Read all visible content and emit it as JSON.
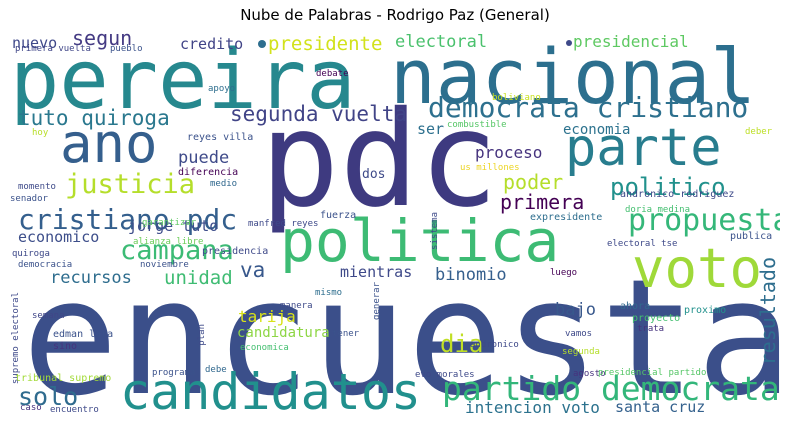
{
  "title": "Nube de Palabras - Rodrigo Paz (General)",
  "words": [
    {
      "text": "encuesta",
      "color": "#3b4f8a"
    },
    {
      "text": "pdc",
      "color": "#3e3a80"
    },
    {
      "text": "nacional",
      "color": "#2c6f8e"
    },
    {
      "text": "pereira",
      "color": "#26888e"
    },
    {
      "text": "politica",
      "color": "#3dbb74"
    },
    {
      "text": "voto",
      "color": "#9fd939"
    },
    {
      "text": "candidatos",
      "color": "#21908d"
    },
    {
      "text": "parte",
      "color": "#287d8e"
    },
    {
      "text": "ano",
      "color": "#355f8d"
    },
    {
      "text": "partido democrata",
      "color": "#33b67a"
    },
    {
      "text": "democrata cristiano",
      "color": "#2d708e"
    },
    {
      "text": "cristiano pdc",
      "color": "#345f8d"
    },
    {
      "text": "propuesta",
      "color": "#35b779"
    },
    {
      "text": "justicia",
      "color": "#b5de2b"
    },
    {
      "text": "campana",
      "color": "#3cbb75"
    },
    {
      "text": "tuto quiroga",
      "color": "#2a788e"
    },
    {
      "text": "segunda vuelta",
      "color": "#414487"
    },
    {
      "text": "politico",
      "color": "#21918c"
    },
    {
      "text": "solo",
      "color": "#2f6b8e"
    },
    {
      "text": "presidente",
      "color": "#d2e21b"
    },
    {
      "text": "segun",
      "color": "#443a83"
    },
    {
      "text": "nuevo",
      "color": "#3f4889"
    },
    {
      "text": "credito",
      "color": "#414487"
    },
    {
      "text": "electoral",
      "color": "#4ac16d"
    },
    {
      "text": "presidencial",
      "color": "#5ec962"
    },
    {
      "text": "resultado",
      "color": "#2e6e8e"
    },
    {
      "text": "va",
      "color": "#38588c"
    },
    {
      "text": "dia",
      "color": "#c0df25"
    },
    {
      "text": "tarija",
      "color": "#d8e219"
    },
    {
      "text": "binomio",
      "color": "#355f8d"
    },
    {
      "text": "recursos",
      "color": "#2e6d8e"
    },
    {
      "text": "unidad",
      "color": "#3fbc73"
    },
    {
      "text": "economico",
      "color": "#3d4e8a"
    },
    {
      "text": "jorge tuto",
      "color": "#3d4d8a"
    },
    {
      "text": "primera",
      "color": "#440154"
    },
    {
      "text": "poder",
      "color": "#b5de2b"
    },
    {
      "text": "proceso",
      "color": "#46337e"
    },
    {
      "text": "puede",
      "color": "#3e4a89"
    },
    {
      "text": "mientras",
      "color": "#3e4989"
    },
    {
      "text": "intencion voto",
      "color": "#2c728e"
    },
    {
      "text": "santa cruz",
      "color": "#34618d"
    },
    {
      "text": "bajo",
      "color": "#38588c"
    },
    {
      "text": "economia",
      "color": "#2c728e"
    },
    {
      "text": "ser",
      "color": "#2d708e"
    },
    {
      "text": "dos",
      "color": "#3e4a89"
    },
    {
      "text": "candidatura",
      "color": "#8ed645"
    },
    {
      "text": "primera vuelta",
      "color": "#404688"
    },
    {
      "text": "pueblo",
      "color": "#3b528b"
    },
    {
      "text": "boliviano",
      "color": "#c8e020"
    },
    {
      "text": "combustible",
      "color": "#56c667"
    },
    {
      "text": "debate",
      "color": "#440154"
    },
    {
      "text": "apoyo",
      "color": "#2e6e8e"
    },
    {
      "text": "reyes villa",
      "color": "#3b528b"
    },
    {
      "text": "diferencia",
      "color": "#440154"
    },
    {
      "text": "medio",
      "color": "#31688e"
    },
    {
      "text": "hoy",
      "color": "#b8de29"
    },
    {
      "text": "momento",
      "color": "#3e4a89"
    },
    {
      "text": "senador",
      "color": "#3b528b"
    },
    {
      "text": "us millones",
      "color": "#ecd525"
    },
    {
      "text": "deber",
      "color": "#bddf26"
    },
    {
      "text": "andronico rodriguez",
      "color": "#3e4a89"
    },
    {
      "text": "doria medina",
      "color": "#44bf70"
    },
    {
      "text": "expresidente",
      "color": "#2e6e8e"
    },
    {
      "text": "fuerza",
      "color": "#3b528b"
    },
    {
      "text": "manfred reyes",
      "color": "#3e4989"
    },
    {
      "text": "garantizar",
      "color": "#5ec962"
    },
    {
      "text": "alianza libre",
      "color": "#6ccd5a"
    },
    {
      "text": "presidencia",
      "color": "#3e4989"
    },
    {
      "text": "quiroga",
      "color": "#3e4989"
    },
    {
      "text": "democracia",
      "color": "#3b528b"
    },
    {
      "text": "noviembre",
      "color": "#3b528b"
    },
    {
      "text": "sistema",
      "color": "#3e4a89"
    },
    {
      "text": "electoral tse",
      "color": "#3e4989"
    },
    {
      "text": "publica",
      "color": "#3b528b"
    },
    {
      "text": "luego",
      "color": "#440154"
    },
    {
      "text": "generar",
      "color": "#3b528b"
    },
    {
      "text": "mismo",
      "color": "#2e6e8e"
    },
    {
      "text": "manera",
      "color": "#3e4a89"
    },
    {
      "text": "ahora",
      "color": "#31688e"
    },
    {
      "text": "proyecto",
      "color": "#44bf70"
    },
    {
      "text": "proximo",
      "color": "#21918c"
    },
    {
      "text": "trata",
      "color": "#46337e"
    },
    {
      "text": "supremo electoral",
      "color": "#3e4989"
    },
    {
      "text": "semana",
      "color": "#404688"
    },
    {
      "text": "edman lara",
      "color": "#3b528b"
    },
    {
      "text": "sino",
      "color": "#46337e"
    },
    {
      "text": "plan",
      "color": "#3e4a89"
    },
    {
      "text": "economica",
      "color": "#44bf70"
    },
    {
      "text": "tener",
      "color": "#3b528b"
    },
    {
      "text": "andronico",
      "color": "#3e4989"
    },
    {
      "text": "vamos",
      "color": "#3e4989"
    },
    {
      "text": "segunda",
      "color": "#b5de2b"
    },
    {
      "text": "tribunal supremo",
      "color": "#a2da37"
    },
    {
      "text": "programa",
      "color": "#3b528b"
    },
    {
      "text": "debe",
      "color": "#31688e"
    },
    {
      "text": "evo morales",
      "color": "#3e4989"
    },
    {
      "text": "agosto",
      "color": "#46337e"
    },
    {
      "text": "presidencial partido",
      "color": "#56c667"
    },
    {
      "text": "caso",
      "color": "#46337e"
    },
    {
      "text": "encuentro",
      "color": "#3e4989"
    }
  ]
}
